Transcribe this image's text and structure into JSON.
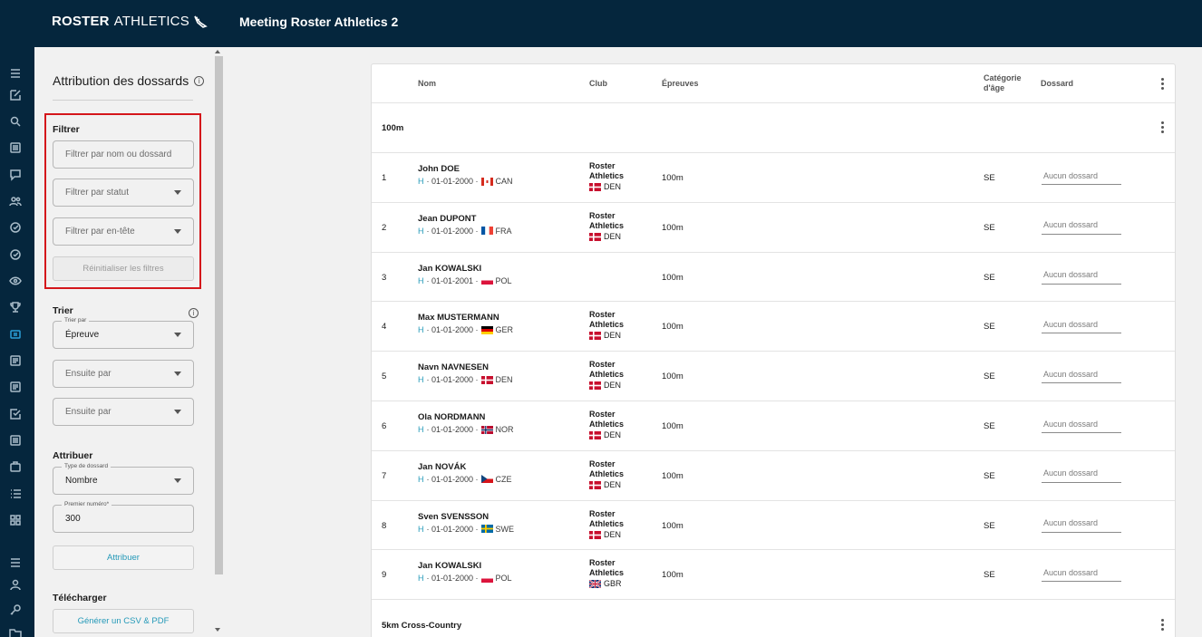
{
  "header": {
    "brand_bold": "ROSTER",
    "brand_light": "ATHLETICS",
    "title": "Meeting Roster Athletics 2"
  },
  "panel": {
    "title": "Attribution des dossards",
    "filter": {
      "label": "Filtrer",
      "name_placeholder": "Filtrer par nom ou dossard",
      "status_placeholder": "Filtrer par statut",
      "header_placeholder": "Filtrer par en-tête",
      "reset_label": "Réinitialiser les filtres"
    },
    "sort": {
      "label": "Trier",
      "sort_by_legend": "Trier par",
      "sort_by_value": "Épreuve",
      "then_by_1": "Ensuite par",
      "then_by_2": "Ensuite par"
    },
    "assign": {
      "label": "Attribuer",
      "type_legend": "Type de dossard",
      "type_value": "Nombre",
      "first_legend": "Premier numéro*",
      "first_value": "300",
      "button": "Attribuer"
    },
    "download": {
      "label": "Télécharger",
      "button": "Générer un CSV & PDF"
    }
  },
  "table": {
    "headers": {
      "name": "Nom",
      "club": "Club",
      "events": "Épreuves",
      "age_cat_1": "Catégorie",
      "age_cat_2": "d'âge",
      "bib": "Dossard"
    },
    "groups": [
      {
        "label": "100m"
      },
      {
        "label": "5km Cross-Country"
      }
    ],
    "rows": [
      {
        "num": "1",
        "name": "John DOE",
        "gender": "H",
        "dob": "· 01-01-2000 ·",
        "nat": "CAN",
        "club1": "Roster",
        "club2": "Athletics",
        "club_country": "DEN",
        "event": "100m",
        "cat": "SE",
        "bib_placeholder": "Aucun dossard"
      },
      {
        "num": "2",
        "name": "Jean DUPONT",
        "gender": "H",
        "dob": "· 01-01-2000 ·",
        "nat": "FRA",
        "club1": "Roster",
        "club2": "Athletics",
        "club_country": "DEN",
        "event": "100m",
        "cat": "SE",
        "bib_placeholder": "Aucun dossard"
      },
      {
        "num": "3",
        "name": "Jan KOWALSKI",
        "gender": "H",
        "dob": "· 01-01-2001 ·",
        "nat": "POL",
        "club1": "",
        "club2": "",
        "club_country": "",
        "event": "100m",
        "cat": "SE",
        "bib_placeholder": "Aucun dossard"
      },
      {
        "num": "4",
        "name": "Max MUSTERMANN",
        "gender": "H",
        "dob": "· 01-01-2000 ·",
        "nat": "GER",
        "club1": "Roster",
        "club2": "Athletics",
        "club_country": "DEN",
        "event": "100m",
        "cat": "SE",
        "bib_placeholder": "Aucun dossard"
      },
      {
        "num": "5",
        "name": "Navn NAVNESEN",
        "gender": "H",
        "dob": "· 01-01-2000 ·",
        "nat": "DEN",
        "club1": "Roster",
        "club2": "Athletics",
        "club_country": "DEN",
        "event": "100m",
        "cat": "SE",
        "bib_placeholder": "Aucun dossard"
      },
      {
        "num": "6",
        "name": "Ola NORDMANN",
        "gender": "H",
        "dob": "· 01-01-2000 ·",
        "nat": "NOR",
        "club1": "Roster",
        "club2": "Athletics",
        "club_country": "DEN",
        "event": "100m",
        "cat": "SE",
        "bib_placeholder": "Aucun dossard"
      },
      {
        "num": "7",
        "name": "Jan NOVÁK",
        "gender": "H",
        "dob": "· 01-01-2000 ·",
        "nat": "CZE",
        "club1": "Roster",
        "club2": "Athletics",
        "club_country": "DEN",
        "event": "100m",
        "cat": "SE",
        "bib_placeholder": "Aucun dossard"
      },
      {
        "num": "8",
        "name": "Sven SVENSSON",
        "gender": "H",
        "dob": "· 01-01-2000 ·",
        "nat": "SWE",
        "club1": "Roster",
        "club2": "Athletics",
        "club_country": "DEN",
        "event": "100m",
        "cat": "SE",
        "bib_placeholder": "Aucun dossard"
      },
      {
        "num": "9",
        "name": "Jan KOWALSKI",
        "gender": "H",
        "dob": "· 01-01-2000 ·",
        "nat": "POL",
        "club1": "Roster",
        "club2": "Athletics",
        "club_country": "GBR",
        "event": "100m",
        "cat": "SE",
        "bib_placeholder": "Aucun dossard"
      }
    ]
  },
  "rail_icons": [
    "menu-icon",
    "edit-icon",
    "search-icon",
    "list-icon",
    "chat-icon",
    "users-icon",
    "check-circle-icon",
    "check-circle-icon",
    "eye-icon",
    "trophy-icon",
    "bib-icon",
    "document-icon",
    "document-icon",
    "checkbox-icon",
    "document-icon",
    "briefcase-icon",
    "list-ordered-icon",
    "grid-icon",
    "menu-icon",
    "user-icon",
    "key-icon",
    "folder-icon"
  ],
  "colors": {
    "header_bg": "#05263d",
    "accent": "#2499b8",
    "highlight": "#d4161b"
  }
}
